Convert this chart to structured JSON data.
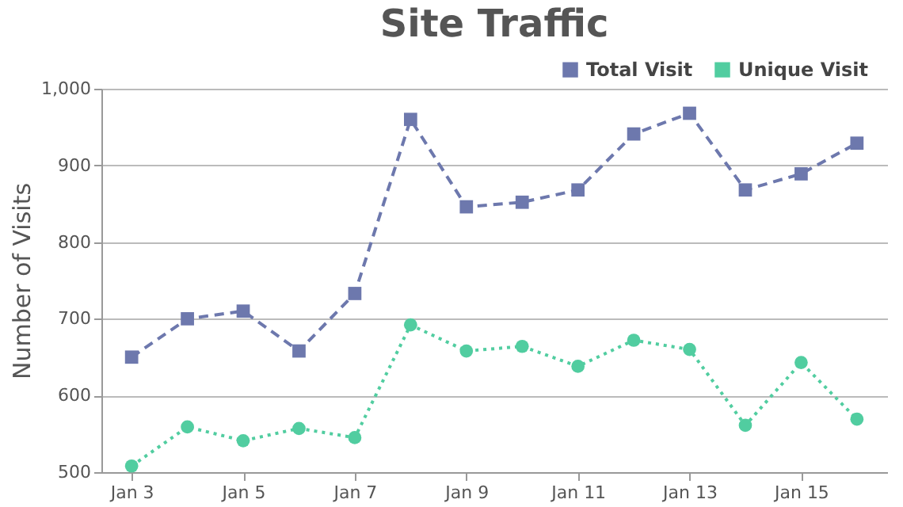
{
  "chart_data": {
    "type": "line",
    "title": "Site Traffic",
    "ylabel": "Number of Visits",
    "x": [
      "--01-03",
      "--01-04",
      "--01-05",
      "--01-06",
      "--01-07",
      "--01-08",
      "--01-09",
      "--01-10",
      "--01-11",
      "--01-12",
      "--01-13",
      "--01-14",
      "--01-15",
      "--01-16"
    ],
    "xlim": [
      "--01-02T11:00",
      "--01-16T13:00"
    ],
    "xticks": [
      {
        "value": "--01-03",
        "label": "Jan 3"
      },
      {
        "value": "--01-05",
        "label": "Jan 5"
      },
      {
        "value": "--01-07",
        "label": "Jan 7"
      },
      {
        "value": "--01-09",
        "label": "Jan 9"
      },
      {
        "value": "--01-11",
        "label": "Jan 11"
      },
      {
        "value": "--01-13",
        "label": "Jan 13"
      },
      {
        "value": "--01-15",
        "label": "Jan 15"
      }
    ],
    "ylim": [
      500,
      1000
    ],
    "yticks": [
      500,
      600,
      700,
      800,
      900,
      {
        "value": 1000,
        "label": "1,000"
      }
    ],
    "grid": "y",
    "legend": "top right",
    "series": [
      {
        "name": "Total Visit",
        "color": "#6d78ad",
        "marker": "square",
        "line_style": "dashed",
        "values": [
          650,
          700,
          710,
          658,
          733,
          960,
          846,
          852,
          868,
          941,
          968,
          868,
          889,
          929
        ]
      },
      {
        "name": "Unique Visit",
        "color": "#51cda0",
        "marker": "circle",
        "line_style": "dotted",
        "values": [
          508,
          559,
          541,
          557,
          545,
          692,
          658,
          664,
          638,
          672,
          660,
          561,
          643,
          569
        ]
      }
    ]
  }
}
